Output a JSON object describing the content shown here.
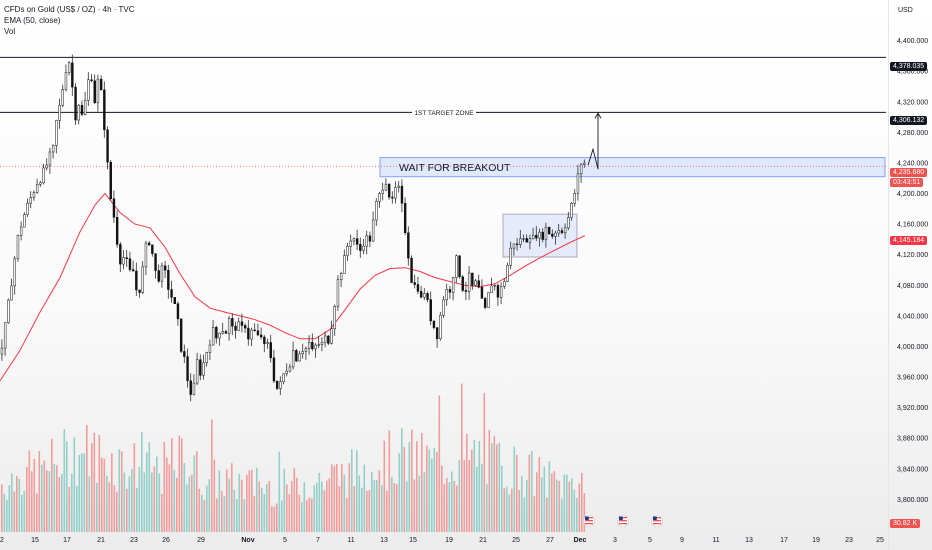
{
  "header": {
    "title": "CFDs on Gold (US$ / OZ) · 4h · TVC",
    "indicator": "EMA (50, close)",
    "volume_label": "Vol",
    "currency": "USD"
  },
  "colors": {
    "up": "#26a69a",
    "down": "#ef5350",
    "ema": "#f23645",
    "line": "#131722",
    "zone": "#2962ff",
    "vol_up": "#93cfc9",
    "vol_down": "#f29d9b"
  },
  "price_tags": {
    "res1": "4,378.035",
    "res2": "4,306.132",
    "last": "4,235.680",
    "countdown": "03:43:51",
    "ema": "4,145.184",
    "volume": "30.82 K"
  },
  "annotations": {
    "target": "1ST TARGET ZONE",
    "breakout": "WAIT FOR BREAKOUT"
  },
  "chart_data": {
    "type": "candlestick",
    "symbol": "CFDs on Gold (US$ / OZ)",
    "timeframe": "4h",
    "ylim": [
      3760,
      4440
    ],
    "y_ticks": [
      "4,400.000",
      "4,360.000",
      "4,320.000",
      "4,280.000",
      "4,240.000",
      "4,200.000",
      "4,160.000",
      "4,120.000",
      "4,080.000",
      "4,040.000",
      "4,000.000",
      "3,960.000",
      "3,920.000",
      "3,880.000",
      "3,840.000",
      "3,800.000"
    ],
    "x_ticks": [
      "2",
      "15",
      "17",
      "21",
      "23",
      "26",
      "29",
      "Nov",
      "5",
      "7",
      "11",
      "13",
      "15",
      "19",
      "21",
      "25",
      "27",
      "Dec",
      "3",
      "5",
      "9",
      "11",
      "13",
      "17",
      "19",
      "23",
      "25"
    ],
    "price_path": [
      [
        0,
        3990
      ],
      [
        6,
        4040
      ],
      [
        12,
        4100
      ],
      [
        18,
        4150
      ],
      [
        24,
        4175
      ],
      [
        30,
        4195
      ],
      [
        36,
        4215
      ],
      [
        42,
        4225
      ],
      [
        48,
        4245
      ],
      [
        52,
        4255
      ],
      [
        56,
        4300
      ],
      [
        60,
        4320
      ],
      [
        64,
        4360
      ],
      [
        68,
        4375
      ],
      [
        71,
        4345
      ],
      [
        74,
        4300
      ],
      [
        78,
        4320
      ],
      [
        82,
        4295
      ],
      [
        86,
        4340
      ],
      [
        90,
        4360
      ],
      [
        94,
        4320
      ],
      [
        98,
        4355
      ],
      [
        102,
        4310
      ],
      [
        106,
        4250
      ],
      [
        108,
        4205
      ],
      [
        112,
        4180
      ],
      [
        116,
        4140
      ],
      [
        120,
        4110
      ],
      [
        124,
        4120
      ],
      [
        128,
        4095
      ],
      [
        132,
        4100
      ],
      [
        136,
        4070
      ],
      [
        140,
        4080
      ],
      [
        144,
        4125
      ],
      [
        148,
        4140
      ],
      [
        152,
        4118
      ],
      [
        156,
        4085
      ],
      [
        160,
        4100
      ],
      [
        164,
        4095
      ],
      [
        168,
        4075
      ],
      [
        172,
        4060
      ],
      [
        176,
        4040
      ],
      [
        180,
        4000
      ],
      [
        184,
        3980
      ],
      [
        188,
        3945
      ],
      [
        192,
        3935
      ],
      [
        196,
        3980
      ],
      [
        200,
        3965
      ],
      [
        204,
        3985
      ],
      [
        208,
        4005
      ],
      [
        212,
        4020
      ],
      [
        216,
        4010
      ],
      [
        220,
        4030
      ],
      [
        224,
        4015
      ],
      [
        228,
        4035
      ],
      [
        232,
        4020
      ],
      [
        236,
        4030
      ],
      [
        240,
        4020
      ],
      [
        244,
        4030
      ],
      [
        248,
        4010
      ],
      [
        252,
        4025
      ],
      [
        256,
        4010
      ],
      [
        260,
        4015
      ],
      [
        264,
        3995
      ],
      [
        268,
        4005
      ],
      [
        272,
        3965
      ],
      [
        276,
        3945
      ],
      [
        280,
        3950
      ],
      [
        284,
        3970
      ],
      [
        288,
        3975
      ],
      [
        292,
        3995
      ],
      [
        296,
        3985
      ],
      [
        300,
        4000
      ],
      [
        304,
        3995
      ],
      [
        308,
        4005
      ],
      [
        312,
        3990
      ],
      [
        316,
        4005
      ],
      [
        320,
        4000
      ],
      [
        324,
        4010
      ],
      [
        328,
        4010
      ],
      [
        332,
        4040
      ],
      [
        336,
        4080
      ],
      [
        340,
        4100
      ],
      [
        344,
        4115
      ],
      [
        348,
        4140
      ],
      [
        352,
        4145
      ],
      [
        356,
        4130
      ],
      [
        360,
        4125
      ],
      [
        364,
        4145
      ],
      [
        368,
        4135
      ],
      [
        372,
        4160
      ],
      [
        376,
        4190
      ],
      [
        380,
        4200
      ],
      [
        384,
        4225
      ],
      [
        388,
        4200
      ],
      [
        392,
        4185
      ],
      [
        396,
        4215
      ],
      [
        400,
        4190
      ],
      [
        404,
        4155
      ],
      [
        408,
        4115
      ],
      [
        412,
        4075
      ],
      [
        416,
        4085
      ],
      [
        420,
        4060
      ],
      [
        424,
        4075
      ],
      [
        428,
        4045
      ],
      [
        432,
        4030
      ],
      [
        436,
        4015
      ],
      [
        440,
        4045
      ],
      [
        444,
        4075
      ],
      [
        448,
        4070
      ],
      [
        452,
        4095
      ],
      [
        456,
        4115
      ],
      [
        460,
        4085
      ],
      [
        464,
        4070
      ],
      [
        468,
        4090
      ],
      [
        472,
        4075
      ],
      [
        476,
        4085
      ],
      [
        480,
        4060
      ],
      [
        484,
        4045
      ],
      [
        488,
        4070
      ],
      [
        492,
        4090
      ],
      [
        496,
        4065
      ],
      [
        500,
        4075
      ],
      [
        504,
        4090
      ],
      [
        508,
        4115
      ],
      [
        512,
        4140
      ],
      [
        516,
        4130
      ],
      [
        520,
        4145
      ],
      [
        524,
        4135
      ],
      [
        528,
        4150
      ],
      [
        532,
        4140
      ],
      [
        536,
        4150
      ],
      [
        540,
        4140
      ],
      [
        544,
        4155
      ],
      [
        548,
        4150
      ],
      [
        552,
        4145
      ],
      [
        556,
        4155
      ],
      [
        560,
        4150
      ],
      [
        564,
        4160
      ],
      [
        568,
        4170
      ],
      [
        572,
        4190
      ],
      [
        576,
        4215
      ],
      [
        580,
        4240
      ],
      [
        584,
        4240
      ],
      [
        588,
        4235
      ]
    ],
    "ema_path": [
      [
        0,
        3955
      ],
      [
        20,
        3995
      ],
      [
        40,
        4045
      ],
      [
        60,
        4090
      ],
      [
        80,
        4150
      ],
      [
        95,
        4185
      ],
      [
        105,
        4200
      ],
      [
        120,
        4175
      ],
      [
        135,
        4160
      ],
      [
        150,
        4155
      ],
      [
        165,
        4130
      ],
      [
        180,
        4095
      ],
      [
        195,
        4065
      ],
      [
        210,
        4050
      ],
      [
        225,
        4045
      ],
      [
        240,
        4040
      ],
      [
        255,
        4035
      ],
      [
        270,
        4028
      ],
      [
        285,
        4018
      ],
      [
        300,
        4010
      ],
      [
        315,
        4010
      ],
      [
        330,
        4022
      ],
      [
        345,
        4048
      ],
      [
        360,
        4075
      ],
      [
        375,
        4093
      ],
      [
        390,
        4102
      ],
      [
        405,
        4103
      ],
      [
        420,
        4098
      ],
      [
        435,
        4090
      ],
      [
        450,
        4085
      ],
      [
        465,
        4080
      ],
      [
        480,
        4078
      ],
      [
        495,
        4082
      ],
      [
        510,
        4093
      ],
      [
        525,
        4105
      ],
      [
        540,
        4116
      ],
      [
        555,
        4126
      ],
      [
        570,
        4136
      ],
      [
        585,
        4145
      ]
    ],
    "volume_profile": [
      [
        0,
        0.35
      ],
      [
        40,
        0.45
      ],
      [
        80,
        0.6
      ],
      [
        120,
        0.5
      ],
      [
        160,
        0.45
      ],
      [
        185,
        0.55
      ],
      [
        200,
        0.4
      ],
      [
        240,
        0.35
      ],
      [
        280,
        0.32
      ],
      [
        320,
        0.38
      ],
      [
        360,
        0.45
      ],
      [
        400,
        0.55
      ],
      [
        440,
        0.5
      ],
      [
        480,
        0.55
      ],
      [
        520,
        0.45
      ],
      [
        560,
        0.35
      ],
      [
        585,
        0.4
      ]
    ],
    "levels": [
      {
        "price": 4378.035,
        "label": "4,378.035"
      },
      {
        "price": 4306.132,
        "label": "1ST TARGET ZONE"
      }
    ],
    "zones": [
      {
        "name": "WAIT FOR BREAKOUT",
        "x_from": 380,
        "x_to": 885,
        "price_high": 4247,
        "price_low": 4222
      },
      {
        "name": "consolidation",
        "x_from": 503,
        "x_to": 577,
        "price_high": 4173,
        "price_low": 4117
      }
    ],
    "projection": [
      [
        588,
        4237
      ],
      [
        593,
        4258
      ],
      [
        598,
        4232
      ],
      [
        598,
        4305
      ]
    ],
    "events_x": [
      589,
      623,
      657
    ]
  }
}
